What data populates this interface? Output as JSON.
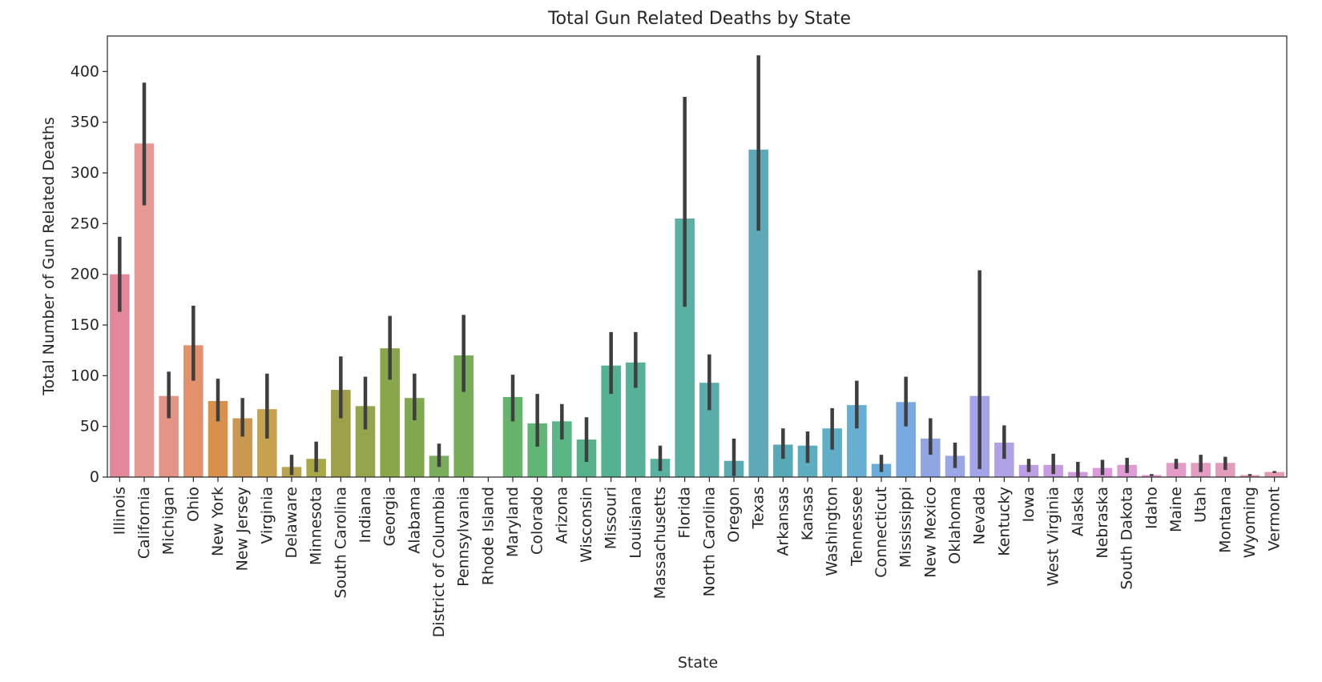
{
  "chart_data": {
    "type": "bar",
    "title": "Total Gun Related Deaths by State",
    "xlabel": "State",
    "ylabel": "Total Number of Gun Related Deaths",
    "ylim": [
      0,
      435
    ],
    "yticks": [
      0,
      50,
      100,
      150,
      200,
      250,
      300,
      350,
      400
    ],
    "grid": false,
    "legend": "none",
    "error_bars": true,
    "categories": [
      "Illinois",
      "California",
      "Michigan",
      "Ohio",
      "New York",
      "New Jersey",
      "Virginia",
      "Delaware",
      "Minnesota",
      "South Carolina",
      "Indiana",
      "Georgia",
      "Alabama",
      "District of Columbia",
      "Pennsylvania",
      "Rhode Island",
      "Maryland",
      "Colorado",
      "Arizona",
      "Wisconsin",
      "Missouri",
      "Louisiana",
      "Massachusetts",
      "Florida",
      "North Carolina",
      "Oregon",
      "Texas",
      "Arkansas",
      "Kansas",
      "Washington",
      "Tennessee",
      "Connecticut",
      "Mississippi",
      "New Mexico",
      "Oklahoma",
      "Nevada",
      "Kentucky",
      "Iowa",
      "West Virginia",
      "Alaska",
      "Nebraska",
      "South Dakota",
      "Idaho",
      "Maine",
      "Utah",
      "Montana",
      "Wyoming",
      "Vermont"
    ],
    "values": [
      200,
      329,
      80,
      130,
      75,
      58,
      67,
      10,
      18,
      86,
      70,
      127,
      78,
      21,
      120,
      0,
      79,
      53,
      55,
      37,
      110,
      113,
      18,
      255,
      93,
      16,
      323,
      32,
      31,
      48,
      71,
      13,
      74,
      38,
      21,
      80,
      34,
      12,
      12,
      5,
      9,
      12,
      2,
      14,
      14,
      14,
      2,
      5
    ],
    "ci_low": [
      163,
      268,
      58,
      95,
      55,
      40,
      38,
      2,
      5,
      58,
      47,
      96,
      56,
      10,
      84,
      0,
      55,
      30,
      37,
      15,
      82,
      88,
      6,
      168,
      66,
      1,
      243,
      18,
      14,
      27,
      48,
      5,
      50,
      22,
      9,
      8,
      18,
      5,
      3,
      0,
      2,
      4,
      1,
      8,
      5,
      7,
      1,
      4
    ],
    "ci_high": [
      237,
      389,
      104,
      169,
      97,
      78,
      102,
      22,
      35,
      119,
      99,
      159,
      102,
      33,
      160,
      0,
      101,
      82,
      72,
      59,
      143,
      143,
      31,
      375,
      121,
      38,
      416,
      48,
      45,
      68,
      95,
      22,
      99,
      58,
      34,
      204,
      51,
      18,
      23,
      15,
      17,
      19,
      3,
      18,
      22,
      20,
      3,
      6
    ],
    "colors": [
      "#e4879a",
      "#e79995",
      "#e29584",
      "#e3906d",
      "#d7914a",
      "#cb9851",
      "#c8a150",
      "#b8a44c",
      "#a9a849",
      "#9fa14a",
      "#94a54d",
      "#8aa64b",
      "#80a94f",
      "#7aac5c",
      "#77ad58",
      "#70b05e",
      "#67b36b",
      "#60b775",
      "#5bb685",
      "#56b18b",
      "#54b191",
      "#57b09a",
      "#58b29f",
      "#59b0a3",
      "#5badab",
      "#5dabb2",
      "#5da9b7",
      "#58a9b8",
      "#5eadbf",
      "#5fadc7",
      "#67aed2",
      "#6aaddb",
      "#78a9e1",
      "#8fa6e3",
      "#9ba6e6",
      "#a3a3e7",
      "#b1a1e7",
      "#bc9ee4",
      "#c89ae0",
      "#d49ae0",
      "#de98dc",
      "#e09bd5",
      "#e199d0",
      "#e39cc8",
      "#e59cc3",
      "#e39cbc",
      "#e39db6",
      "#e49ab2"
    ]
  }
}
